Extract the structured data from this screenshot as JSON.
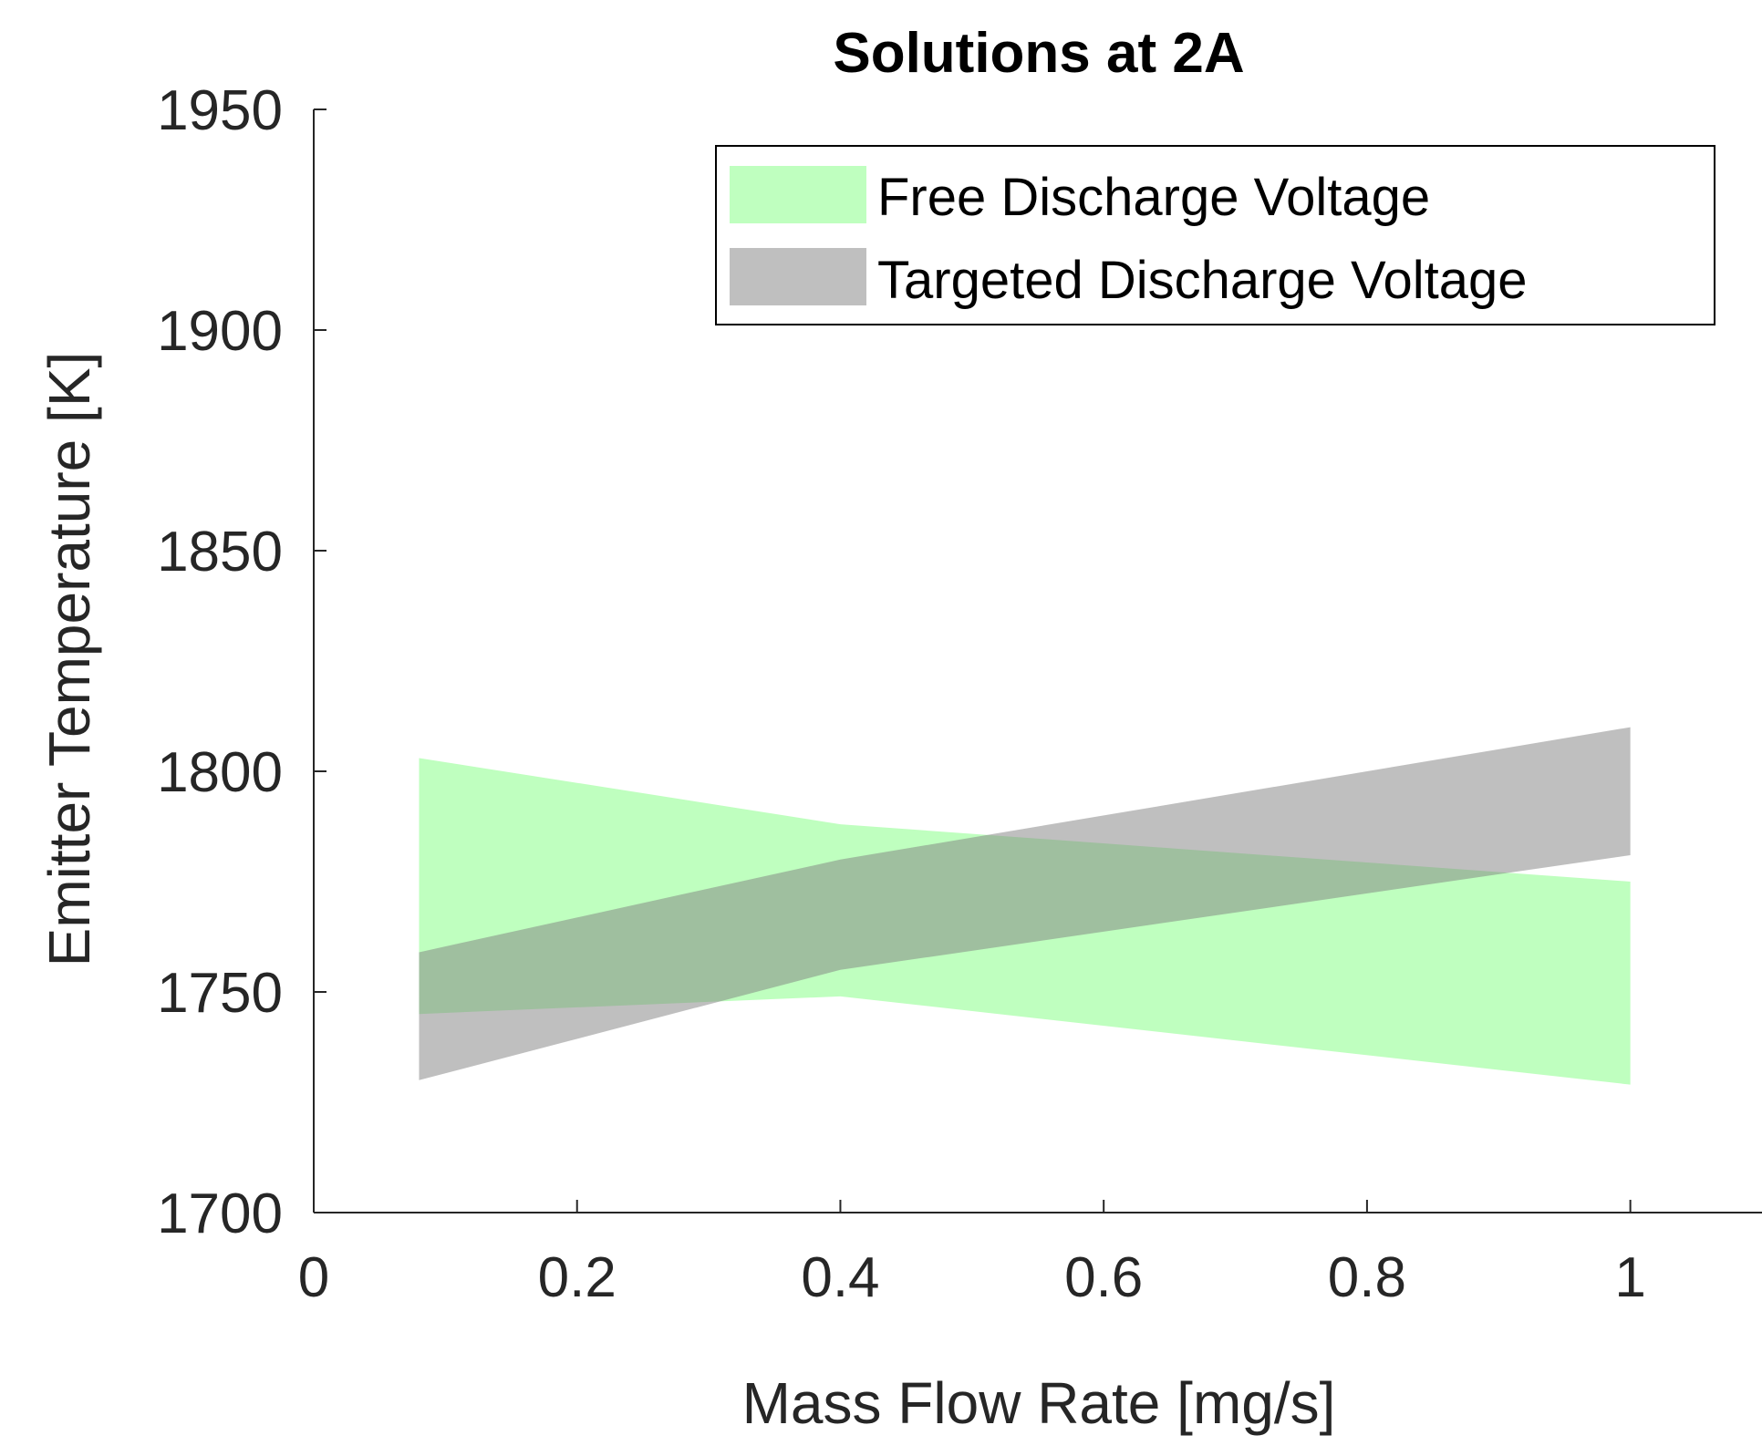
{
  "chart_data": {
    "type": "area",
    "title": "Solutions at 2A",
    "xlabel": "Mass Flow Rate [mg/s]",
    "ylabel": "Emitter Temperature [K]",
    "xlim": [
      0,
      1.1
    ],
    "ylim": [
      1700,
      1950
    ],
    "xticks": [
      0,
      0.2,
      0.4,
      0.6,
      0.8,
      1
    ],
    "xtick_labels": [
      "0",
      "0.2",
      "0.4",
      "0.6",
      "0.8",
      "1"
    ],
    "yticks": [
      1700,
      1750,
      1800,
      1850,
      1900,
      1950
    ],
    "ytick_labels": [
      "1700",
      "1750",
      "1800",
      "1850",
      "1900",
      "1950"
    ],
    "legend_position": "top-right",
    "series": [
      {
        "name": "Free Discharge Voltage",
        "color": "#80ff80",
        "x": [
          0.08,
          0.4,
          1.0
        ],
        "upper": [
          1803,
          1788,
          1775
        ],
        "lower": [
          1745,
          1749,
          1729
        ]
      },
      {
        "name": "Targeted Discharge Voltage",
        "color": "#808080",
        "x": [
          0.08,
          0.4,
          1.0
        ],
        "upper": [
          1759,
          1780,
          1810
        ],
        "lower": [
          1730,
          1755,
          1781
        ]
      }
    ]
  }
}
